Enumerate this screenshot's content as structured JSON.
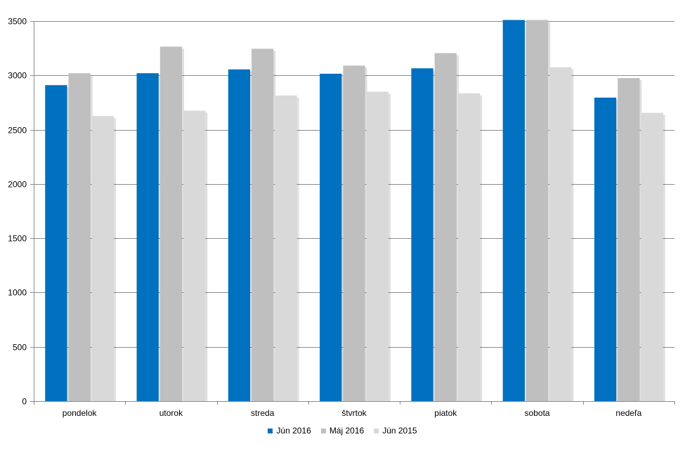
{
  "chart_data": {
    "type": "bar",
    "title": "",
    "xlabel": "",
    "ylabel": "",
    "categories": [
      "pondelok",
      "utorok",
      "streda",
      "štvrtok",
      "piatok",
      "sobota",
      "nedeľa"
    ],
    "series": [
      {
        "name": "Jún 2016",
        "color": "#0070C0",
        "values": [
          2910,
          3020,
          3055,
          3015,
          3065,
          3510,
          2795
        ]
      },
      {
        "name": "Máj 2016",
        "color": "#BFBFBF",
        "values": [
          3020,
          3265,
          3245,
          3090,
          3205,
          3510,
          2975
        ]
      },
      {
        "name": "Jún 2015",
        "color": "#D9D9D9",
        "values": [
          2625,
          2675,
          2815,
          2850,
          2835,
          3075,
          2655
        ]
      }
    ],
    "ylim": [
      0,
      3500
    ],
    "yticks": [
      0,
      500,
      1000,
      1500,
      2000,
      2500,
      3000,
      3500
    ],
    "grid": true,
    "legend_position": "bottom"
  }
}
